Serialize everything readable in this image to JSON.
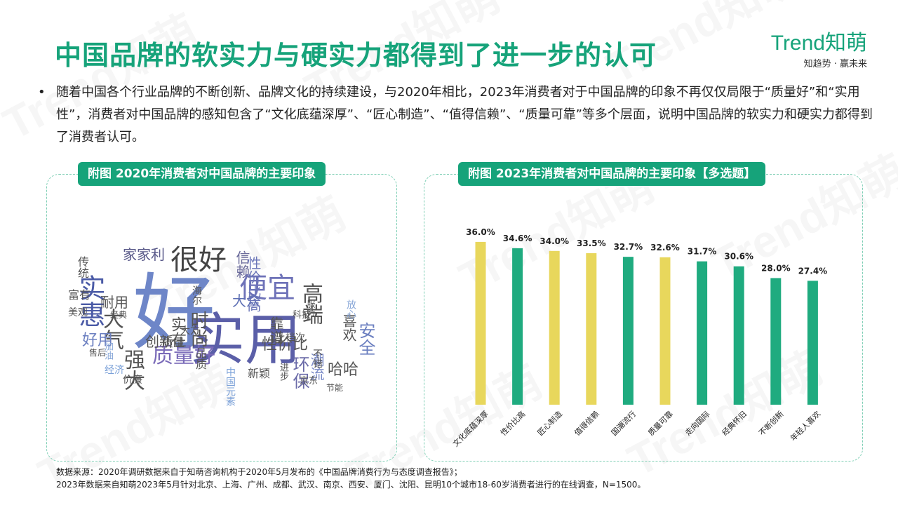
{
  "header": {
    "title": "中国品牌的软实力与硬实力都得到了进一步的认可",
    "logo_brand": "Trend知萌",
    "logo_slogan": "知趋势 · 赢未来",
    "summary": "随着中国各个行业品牌的不断创新、品牌文化的持续建设，与2020年相比，2023年消费者对于中国品牌的印象不再仅仅局限于“质量好”和“实用性”，消费者对中国品牌的感知包含了“文化底蕴深厚”、“匠心制造”、“值得信赖”、“质量可靠”等多个层面，说明中国品牌的软实力和硬实力都得到了消费者认可。"
  },
  "left_panel": {
    "title": "附图  2020年消费者对中国品牌的主要印象",
    "words": [
      {
        "text": "好",
        "color": "#6e86c8"
      },
      {
        "text": "实用",
        "color": "#5b5fa8"
      },
      {
        "text": "很好",
        "color": "#444"
      },
      {
        "text": "便宜",
        "color": "#6e72b8"
      },
      {
        "text": "实惠",
        "color": "#4a5aa6"
      },
      {
        "text": "家家利",
        "color": "#5a5a8a"
      },
      {
        "text": "信赖",
        "color": "#6a6a9a"
      },
      {
        "text": "高端",
        "color": "#555"
      },
      {
        "text": "时尚",
        "color": "#555"
      },
      {
        "text": "大众",
        "color": "#5d6fb4"
      },
      {
        "text": "质量好",
        "color": "#7a6ab8"
      },
      {
        "text": "安全",
        "color": "#6b7fc0"
      },
      {
        "text": "大气",
        "color": "#555"
      },
      {
        "text": "耐用",
        "color": "#555"
      },
      {
        "text": "传统",
        "color": "#555"
      },
      {
        "text": "性价比高",
        "color": "#6b76b8"
      },
      {
        "text": "性价比",
        "color": "#555"
      },
      {
        "text": "环保",
        "color": "#6a6aa8"
      },
      {
        "text": "喜欢",
        "color": "#555"
      },
      {
        "text": "强大",
        "color": "#555"
      },
      {
        "text": "创新",
        "color": "#555"
      },
      {
        "text": "实在",
        "color": "#555"
      },
      {
        "text": "好用",
        "color": "#6b7fc0"
      },
      {
        "text": "靠谱",
        "color": "#555"
      },
      {
        "text": "哈哈",
        "color": "#555"
      },
      {
        "text": "潮流",
        "color": "#7a8ac8"
      },
      {
        "text": "品质",
        "color": "#555"
      },
      {
        "text": "质量",
        "color": "#555"
      },
      {
        "text": "富有",
        "color": "#555"
      },
      {
        "text": "美观",
        "color": "#555"
      },
      {
        "text": "海尔",
        "color": "#555"
      },
      {
        "text": "新颖",
        "color": "#555"
      },
      {
        "text": "中国元素",
        "color": "#7aa0d8"
      },
      {
        "text": "经济",
        "color": "#7aa0d8"
      },
      {
        "text": "价廉",
        "color": "#555"
      },
      {
        "text": "大方",
        "color": "#555"
      },
      {
        "text": "科技",
        "color": "#555"
      },
      {
        "text": "放心",
        "color": "#8aa8d8"
      },
      {
        "text": "上档次",
        "color": "#555"
      },
      {
        "text": "不错",
        "color": "#555"
      },
      {
        "text": "京东",
        "color": "#555"
      },
      {
        "text": "进步",
        "color": "#555"
      },
      {
        "text": "节能",
        "color": "#555"
      },
      {
        "text": "服务",
        "color": "#555"
      },
      {
        "text": "加油",
        "color": "#8aa8d8"
      },
      {
        "text": "经典",
        "color": "#555"
      },
      {
        "text": "售后",
        "color": "#555"
      }
    ]
  },
  "right_panel": {
    "title": "附图  2023年消费者对中国品牌的主要印象【多选题】"
  },
  "chart_data": {
    "type": "bar",
    "title": "附图  2023年消费者对中国品牌的主要印象【多选题】",
    "categories": [
      "文化底蕴深厚",
      "性价比高",
      "匠心制造",
      "值得信赖",
      "国潮流行",
      "质量可靠",
      "走向国际",
      "经典怀旧",
      "不断创新",
      "年轻人喜欢"
    ],
    "values": [
      36.0,
      34.6,
      34.0,
      33.5,
      32.7,
      32.6,
      31.7,
      30.6,
      28.0,
      27.4
    ],
    "value_labels": [
      "36.0%",
      "34.6%",
      "34.0%",
      "33.5%",
      "32.7%",
      "32.6%",
      "31.7%",
      "30.6%",
      "28.0%",
      "27.4%"
    ],
    "highlight_categories": [
      "文化底蕴深厚",
      "匠心制造",
      "值得信赖",
      "质量可靠"
    ],
    "colors": {
      "highlight": "#e8d75c",
      "default": "#1fab7f"
    },
    "ylim": [
      0,
      38
    ],
    "grid": false,
    "legend": "none"
  },
  "footnote": {
    "line1": "数据来源：2020年调研数据来自于知萌咨询机构于2020年5月发布的《中国品牌消费行为与态度调查报告》；",
    "line2": "2023年数据来自知萌2023年5月针对北京、上海、广州、成都、武汉、南京、西安、厦门、沈阳、昆明10个城市18-60岁消费者进行的在线调查，N=1500。"
  }
}
